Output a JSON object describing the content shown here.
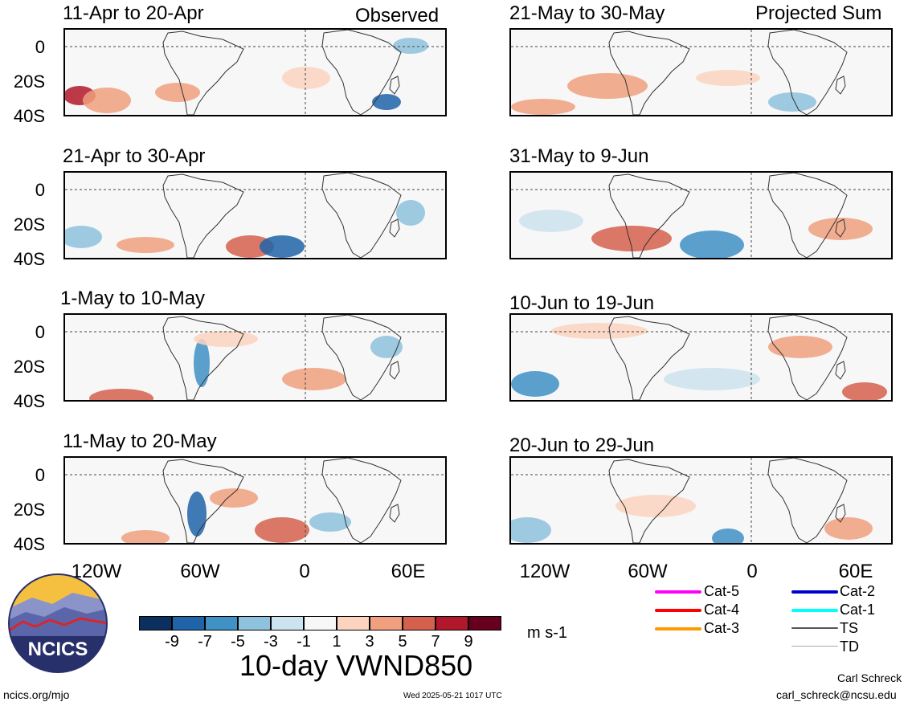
{
  "header": {
    "observed_label": "Observed",
    "projected_label": "Projected Sum"
  },
  "panels_left": [
    {
      "title": "11-Apr to 20-Apr"
    },
    {
      "title": "21-Apr to 30-Apr"
    },
    {
      "title": "1-May to 10-May"
    },
    {
      "title": "11-May to 20-May"
    }
  ],
  "panels_right": [
    {
      "title": "21-May to 30-May"
    },
    {
      "title": "31-May to 9-Jun"
    },
    {
      "title": "10-Jun to 19-Jun"
    },
    {
      "title": "20-Jun to 29-Jun"
    }
  ],
  "axes": {
    "lat_labels": [
      "0",
      "20S",
      "40S"
    ],
    "lon_labels": [
      "120W",
      "60W",
      "0",
      "60E"
    ]
  },
  "colorbar": {
    "ticks": [
      "-9",
      "-7",
      "-5",
      "-3",
      "-1",
      "1",
      "3",
      "5",
      "7",
      "9"
    ],
    "colors": [
      "#0b2f5e",
      "#1f64a8",
      "#3f91c6",
      "#8ec2dd",
      "#cde3ef",
      "#f7f7f7",
      "#fbd3bf",
      "#f0a07e",
      "#d5604d",
      "#b2182b",
      "#67001f"
    ],
    "unit": "m s-1",
    "title": "10-day VWND850"
  },
  "storm_legend": [
    {
      "label": "Cat-5",
      "color": "#ff00ff"
    },
    {
      "label": "Cat-4",
      "color": "#ff0000"
    },
    {
      "label": "Cat-3",
      "color": "#ff9900"
    },
    {
      "label": "Cat-2",
      "color": "#0000cc"
    },
    {
      "label": "Cat-1",
      "color": "#00ffff"
    },
    {
      "label": "TS",
      "color": "#555555"
    },
    {
      "label": "TD",
      "color": "#aaaaaa"
    }
  ],
  "logo": {
    "text": "NCICS"
  },
  "footer": {
    "url": "ncics.org/mjo",
    "timestamp": "Wed 2025-05-21 1017 UTC",
    "author": "Carl Schreck",
    "email": "carl_schreck@ncsu.edu"
  }
}
